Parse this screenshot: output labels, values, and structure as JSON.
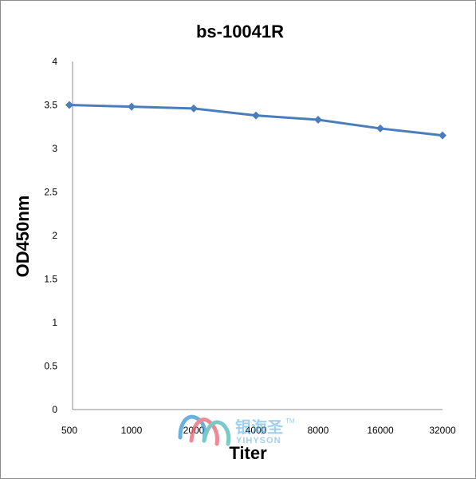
{
  "chart_data": {
    "type": "line",
    "title": "bs-10041R",
    "xlabel": "Titer",
    "ylabel": "OD450nm",
    "categories": [
      "500",
      "1000",
      "2000",
      "4000",
      "8000",
      "16000",
      "32000"
    ],
    "series": [
      {
        "values": [
          3.5,
          3.48,
          3.46,
          3.38,
          3.33,
          3.23,
          3.15
        ],
        "color": "#4a7ebb"
      }
    ],
    "ylim": [
      0,
      4
    ],
    "yticks": [
      "0",
      "0.5",
      "1",
      "1.5",
      "2",
      "2.5",
      "3",
      "3.5",
      "4"
    ],
    "grid": false,
    "legend": "none"
  },
  "watermark": {
    "cn": "银海圣",
    "en": "YIHYSON",
    "tm": "TM"
  }
}
